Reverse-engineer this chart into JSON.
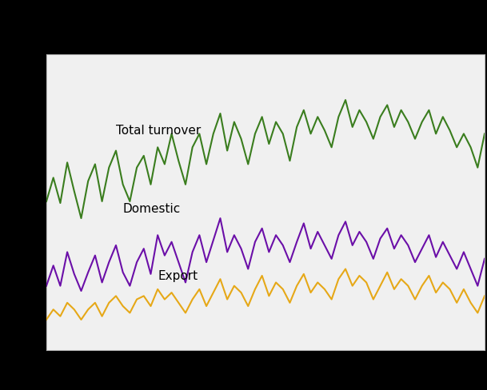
{
  "background_color": "#000000",
  "plot_bg_color": "#f0f0f0",
  "grid_color": "#ffffff",
  "line_colors": {
    "total": "#3a7d1e",
    "domestic": "#6b0fa8",
    "export": "#e6a817"
  },
  "labels": {
    "total": "Total turnover",
    "domestic": "Domestic",
    "export": "Export"
  },
  "total_turnover": [
    108,
    122,
    107,
    131,
    114,
    98,
    120,
    130,
    108,
    128,
    138,
    118,
    108,
    128,
    135,
    118,
    140,
    130,
    148,
    132,
    118,
    140,
    148,
    130,
    148,
    160,
    138,
    155,
    145,
    130,
    148,
    158,
    142,
    155,
    148,
    132,
    152,
    162,
    148,
    158,
    150,
    140,
    158,
    168,
    152,
    162,
    155,
    145,
    158,
    165,
    152,
    162,
    155,
    145,
    155,
    162,
    148,
    158,
    150,
    140,
    148,
    140,
    128,
    148
  ],
  "domestic": [
    58,
    70,
    58,
    78,
    65,
    55,
    66,
    76,
    60,
    72,
    82,
    66,
    58,
    72,
    80,
    65,
    88,
    76,
    84,
    72,
    60,
    78,
    88,
    72,
    85,
    98,
    78,
    88,
    80,
    68,
    84,
    92,
    78,
    88,
    82,
    72,
    84,
    95,
    80,
    90,
    82,
    74,
    88,
    96,
    82,
    90,
    84,
    74,
    86,
    92,
    80,
    88,
    82,
    72,
    80,
    88,
    75,
    84,
    76,
    68,
    78,
    68,
    58,
    74
  ],
  "export": [
    38,
    44,
    40,
    48,
    44,
    38,
    44,
    48,
    40,
    48,
    52,
    46,
    42,
    50,
    52,
    46,
    56,
    50,
    54,
    48,
    42,
    50,
    56,
    46,
    54,
    62,
    50,
    58,
    54,
    46,
    56,
    64,
    52,
    60,
    56,
    48,
    58,
    65,
    54,
    60,
    56,
    50,
    62,
    68,
    58,
    64,
    60,
    50,
    58,
    66,
    56,
    62,
    58,
    50,
    58,
    64,
    54,
    60,
    56,
    48,
    56,
    48,
    42,
    52
  ],
  "n_points": 64,
  "ylim": [
    20,
    195
  ],
  "xlim": [
    0,
    63
  ],
  "linewidth": 1.5,
  "annotation_fontsize": 11,
  "label_positions": {
    "total": [
      10,
      148
    ],
    "domestic": [
      11,
      102
    ],
    "export": [
      16,
      62
    ]
  }
}
